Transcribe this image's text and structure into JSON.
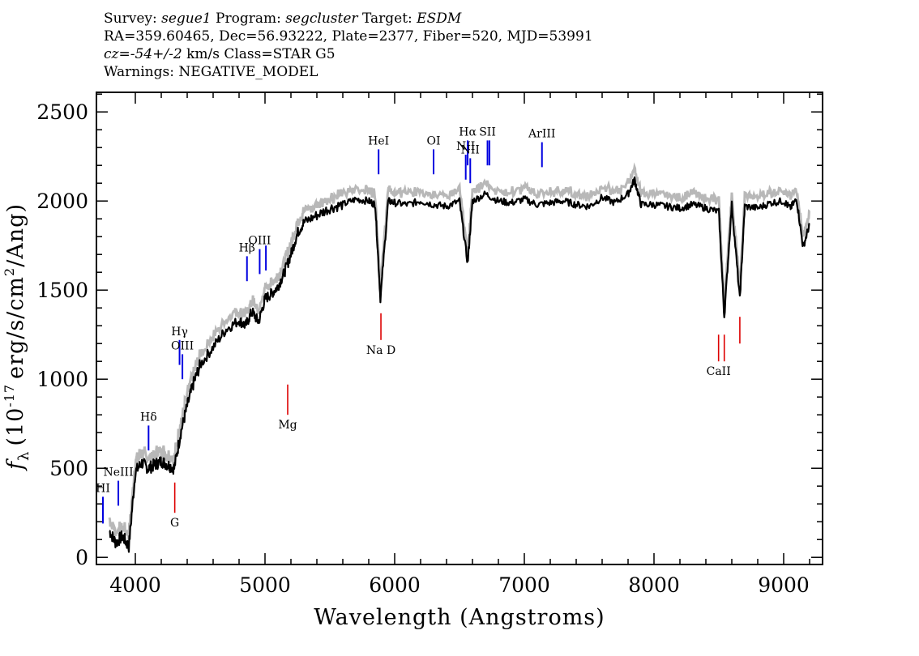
{
  "header": {
    "survey_label": "Survey:",
    "survey": "segue1",
    "program_label": "Program:",
    "program": "segcluster",
    "target_label": "Target:",
    "target": "ESDM",
    "line2": "RA=359.60465, Dec=56.93222, Plate=2377, Fiber=520, MJD=53991",
    "cz_label": "cz=",
    "cz_value": "-54+/-2",
    "cz_unit_class": "km/s Class=STAR G5",
    "warnings": "Warnings: NEGATIVE_MODEL"
  },
  "chart_data": {
    "type": "line",
    "title": "",
    "xlabel": "Wavelength (Angstroms)",
    "ylabel": "f_λ (10^-17 erg/s/cm^2/Ang)",
    "ylabel_parts": {
      "f": "f",
      "sub": "λ",
      "pre": "(10",
      "exp": "-17",
      "mid": "erg/s/cm",
      "exp2": "2",
      "post": "/Ang)"
    },
    "xlim": [
      3700,
      9300
    ],
    "ylim": [
      -40,
      2610
    ],
    "x_ticks": [
      4000,
      5000,
      6000,
      7000,
      8000,
      9000
    ],
    "y_ticks": [
      0,
      500,
      1000,
      1500,
      2000,
      2500
    ],
    "x_tick_labels": [
      "4000",
      "5000",
      "6000",
      "7000",
      "8000",
      "9000"
    ],
    "y_tick_labels": [
      "0",
      "500",
      "1000",
      "1500",
      "2000",
      "2500"
    ],
    "series": [
      {
        "name": "flux",
        "color": "#000000",
        "x": [
          3800,
          3850,
          3900,
          3950,
          4000,
          4050,
          4100,
          4150,
          4200,
          4250,
          4300,
          4350,
          4400,
          4450,
          4500,
          4600,
          4700,
          4800,
          4850,
          4900,
          4950,
          5000,
          5050,
          5100,
          5150,
          5200,
          5250,
          5300,
          5400,
          5500,
          5600,
          5700,
          5800,
          5850,
          5890,
          5950,
          6000,
          6100,
          6200,
          6300,
          6400,
          6500,
          6563,
          6600,
          6700,
          6800,
          6900,
          7000,
          7100,
          7200,
          7300,
          7400,
          7500,
          7600,
          7700,
          7800,
          7850,
          7900,
          8000,
          8100,
          8200,
          8300,
          8400,
          8500,
          8542,
          8600,
          8662,
          8700,
          8800,
          8900,
          9000,
          9050,
          9100,
          9150,
          9200
        ],
        "y": [
          150,
          80,
          120,
          60,
          480,
          530,
          500,
          520,
          540,
          520,
          500,
          700,
          850,
          980,
          1080,
          1180,
          1280,
          1330,
          1300,
          1380,
          1320,
          1450,
          1480,
          1520,
          1600,
          1700,
          1820,
          1880,
          1920,
          1960,
          1980,
          2010,
          2000,
          1980,
          1450,
          2000,
          1990,
          1980,
          2000,
          1980,
          1970,
          2000,
          1650,
          2000,
          2040,
          2000,
          1990,
          2010,
          1980,
          1990,
          2000,
          1980,
          1970,
          2020,
          1990,
          2040,
          2120,
          1980,
          1980,
          1970,
          1960,
          1980,
          1960,
          1940,
          1350,
          1980,
          1450,
          1970,
          1960,
          1990,
          2000,
          1960,
          2010,
          1740,
          1870
        ]
      },
      {
        "name": "model",
        "color": "#b8b8b8"
      }
    ],
    "emission_lines": [
      {
        "label": "HI",
        "x": 3750,
        "y1": 190,
        "y2": 340
      },
      {
        "label": "NeIII",
        "x": 3869,
        "y1": 290,
        "y2": 430
      },
      {
        "label": "Hδ",
        "x": 4102,
        "y1": 600,
        "y2": 740
      },
      {
        "label": "Hγ",
        "x": 4341,
        "y1": 1080,
        "y2": 1220
      },
      {
        "label": "OIII",
        "x": 4363,
        "y1": 1000,
        "y2": 1140
      },
      {
        "label": "Hβ",
        "x": 4861,
        "y1": 1550,
        "y2": 1690
      },
      {
        "label": "OIII",
        "x": 4959,
        "y1": 1590,
        "y2": 1730
      },
      {
        "label": "",
        "x": 5007,
        "y1": 1610,
        "y2": 1750
      },
      {
        "label": "HeI",
        "x": 5876,
        "y1": 2150,
        "y2": 2290
      },
      {
        "label": "OI",
        "x": 6300,
        "y1": 2150,
        "y2": 2290
      },
      {
        "label": "NII",
        "x": 6548,
        "y1": 2120,
        "y2": 2260
      },
      {
        "label": "Hα",
        "x": 6563,
        "y1": 2200,
        "y2": 2340
      },
      {
        "label": "NII",
        "x": 6583,
        "y1": 2100,
        "y2": 2240
      },
      {
        "label": "SII",
        "x": 6716,
        "y1": 2200,
        "y2": 2340
      },
      {
        "label": "",
        "x": 6731,
        "y1": 2200,
        "y2": 2340
      },
      {
        "label": "ArIII",
        "x": 7136,
        "y1": 2190,
        "y2": 2330
      }
    ],
    "absorption_lines": [
      {
        "label": "G",
        "x": 4304,
        "y1": 250,
        "y2": 420
      },
      {
        "label": "Mg",
        "x": 5175,
        "y1": 800,
        "y2": 970
      },
      {
        "label": "Na D",
        "x": 5894,
        "y1": 1220,
        "y2": 1370
      },
      {
        "label": "CaII",
        "x": 8498,
        "y1": 1100,
        "y2": 1250
      },
      {
        "label": "",
        "x": 8542,
        "y1": 1100,
        "y2": 1250
      },
      {
        "label": "",
        "x": 8662,
        "y1": 1200,
        "y2": 1350
      }
    ]
  },
  "colors": {
    "emission": "#0000e0",
    "absorption": "#dd0000",
    "model": "#b8b8b8",
    "flux": "#000000"
  }
}
